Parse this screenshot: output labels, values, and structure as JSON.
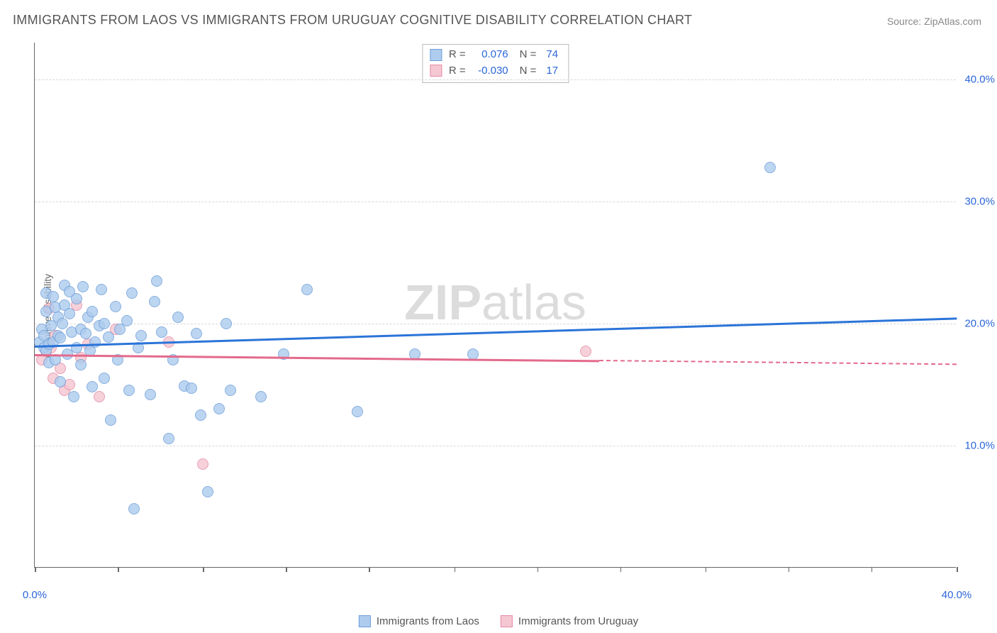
{
  "title": "IMMIGRANTS FROM LAOS VS IMMIGRANTS FROM URUGUAY COGNITIVE DISABILITY CORRELATION CHART",
  "source": "Source: ZipAtlas.com",
  "y_axis_label": "Cognitive Disability",
  "watermark_bold": "ZIP",
  "watermark_rest": "atlas",
  "chart": {
    "type": "scatter",
    "xlim": [
      0,
      40
    ],
    "ylim": [
      0,
      43
    ],
    "y_gridlines": [
      10,
      20,
      30,
      40
    ],
    "y_tick_labels": [
      "10.0%",
      "20.0%",
      "30.0%",
      "40.0%"
    ],
    "x_ticks": [
      0,
      3.6,
      7.3,
      10.9,
      14.5,
      18.2,
      21.8,
      25.4,
      29.1,
      32.7,
      36.3,
      40
    ],
    "x_tick_labels": {
      "0": "0.0%",
      "40": "40.0%"
    },
    "background_color": "#ffffff",
    "grid_color": "#d8d8d8",
    "axis_color": "#666666",
    "label_color": "#2b66d9",
    "marker_radius": 8,
    "series": [
      {
        "name": "Immigrants from Laos",
        "fill": "#aeccee",
        "stroke": "#6f9fd8",
        "line_color": "#2b74d8",
        "R": "0.076",
        "N": "74",
        "trend": {
          "x1": 0,
          "y1": 18.2,
          "x2": 40,
          "y2": 20.5,
          "dash_from": null
        },
        "points": [
          [
            0.2,
            18.5
          ],
          [
            0.3,
            19.5
          ],
          [
            0.4,
            18.0
          ],
          [
            0.4,
            19.0
          ],
          [
            0.5,
            17.8
          ],
          [
            0.5,
            21.0
          ],
          [
            0.5,
            22.5
          ],
          [
            0.6,
            18.3
          ],
          [
            0.6,
            16.8
          ],
          [
            0.7,
            19.8
          ],
          [
            0.8,
            18.5
          ],
          [
            0.8,
            22.2
          ],
          [
            0.9,
            21.3
          ],
          [
            0.9,
            17.0
          ],
          [
            1.0,
            19.0
          ],
          [
            1.0,
            20.5
          ],
          [
            1.1,
            15.2
          ],
          [
            1.1,
            18.8
          ],
          [
            1.2,
            20.0
          ],
          [
            1.3,
            21.5
          ],
          [
            1.3,
            23.1
          ],
          [
            1.4,
            17.5
          ],
          [
            1.5,
            20.8
          ],
          [
            1.5,
            22.6
          ],
          [
            1.6,
            19.3
          ],
          [
            1.7,
            14.0
          ],
          [
            1.8,
            18.0
          ],
          [
            1.8,
            22.0
          ],
          [
            2.0,
            19.5
          ],
          [
            2.0,
            16.6
          ],
          [
            2.1,
            23.0
          ],
          [
            2.2,
            19.2
          ],
          [
            2.3,
            20.5
          ],
          [
            2.4,
            17.8
          ],
          [
            2.5,
            21.0
          ],
          [
            2.5,
            14.8
          ],
          [
            2.6,
            18.5
          ],
          [
            2.8,
            19.8
          ],
          [
            2.9,
            22.8
          ],
          [
            3.0,
            15.5
          ],
          [
            3.0,
            20.0
          ],
          [
            3.2,
            18.9
          ],
          [
            3.3,
            12.1
          ],
          [
            3.5,
            21.4
          ],
          [
            3.6,
            17.0
          ],
          [
            3.7,
            19.5
          ],
          [
            4.0,
            20.2
          ],
          [
            4.1,
            14.5
          ],
          [
            4.2,
            22.5
          ],
          [
            4.3,
            4.8
          ],
          [
            4.5,
            18.0
          ],
          [
            4.6,
            19.0
          ],
          [
            5.0,
            14.2
          ],
          [
            5.2,
            21.8
          ],
          [
            5.3,
            23.5
          ],
          [
            5.5,
            19.3
          ],
          [
            5.8,
            10.6
          ],
          [
            6.0,
            17.0
          ],
          [
            6.2,
            20.5
          ],
          [
            6.5,
            14.9
          ],
          [
            6.8,
            14.7
          ],
          [
            7.0,
            19.2
          ],
          [
            7.2,
            12.5
          ],
          [
            7.5,
            6.2
          ],
          [
            8.0,
            13.0
          ],
          [
            8.3,
            20.0
          ],
          [
            8.5,
            14.5
          ],
          [
            9.8,
            14.0
          ],
          [
            10.8,
            17.5
          ],
          [
            11.8,
            22.8
          ],
          [
            14.0,
            12.8
          ],
          [
            16.5,
            17.5
          ],
          [
            19.0,
            17.5
          ],
          [
            31.9,
            32.8
          ]
        ]
      },
      {
        "name": "Immigrants from Uruguay",
        "fill": "#f5c7d3",
        "stroke": "#e48ba5",
        "line_color": "#e36a8c",
        "R": "-0.030",
        "N": "17",
        "trend": {
          "x1": 0,
          "y1": 17.5,
          "x2": 40,
          "y2": 16.7,
          "dash_from": 24.5
        },
        "points": [
          [
            0.3,
            17.0
          ],
          [
            0.5,
            17.7
          ],
          [
            0.6,
            21.2
          ],
          [
            0.7,
            18.0
          ],
          [
            0.8,
            15.5
          ],
          [
            0.9,
            19.0
          ],
          [
            1.1,
            16.3
          ],
          [
            1.3,
            14.5
          ],
          [
            1.5,
            15.0
          ],
          [
            1.8,
            21.5
          ],
          [
            2.0,
            17.2
          ],
          [
            2.3,
            18.3
          ],
          [
            2.8,
            14.0
          ],
          [
            3.5,
            19.5
          ],
          [
            5.8,
            18.5
          ],
          [
            7.3,
            8.5
          ],
          [
            23.9,
            17.7
          ]
        ]
      }
    ]
  },
  "legend_bottom": [
    {
      "label": "Immigrants from Laos",
      "fill": "#aeccee",
      "stroke": "#6f9fd8"
    },
    {
      "label": "Immigrants from Uruguay",
      "fill": "#f5c7d3",
      "stroke": "#e48ba5"
    }
  ]
}
